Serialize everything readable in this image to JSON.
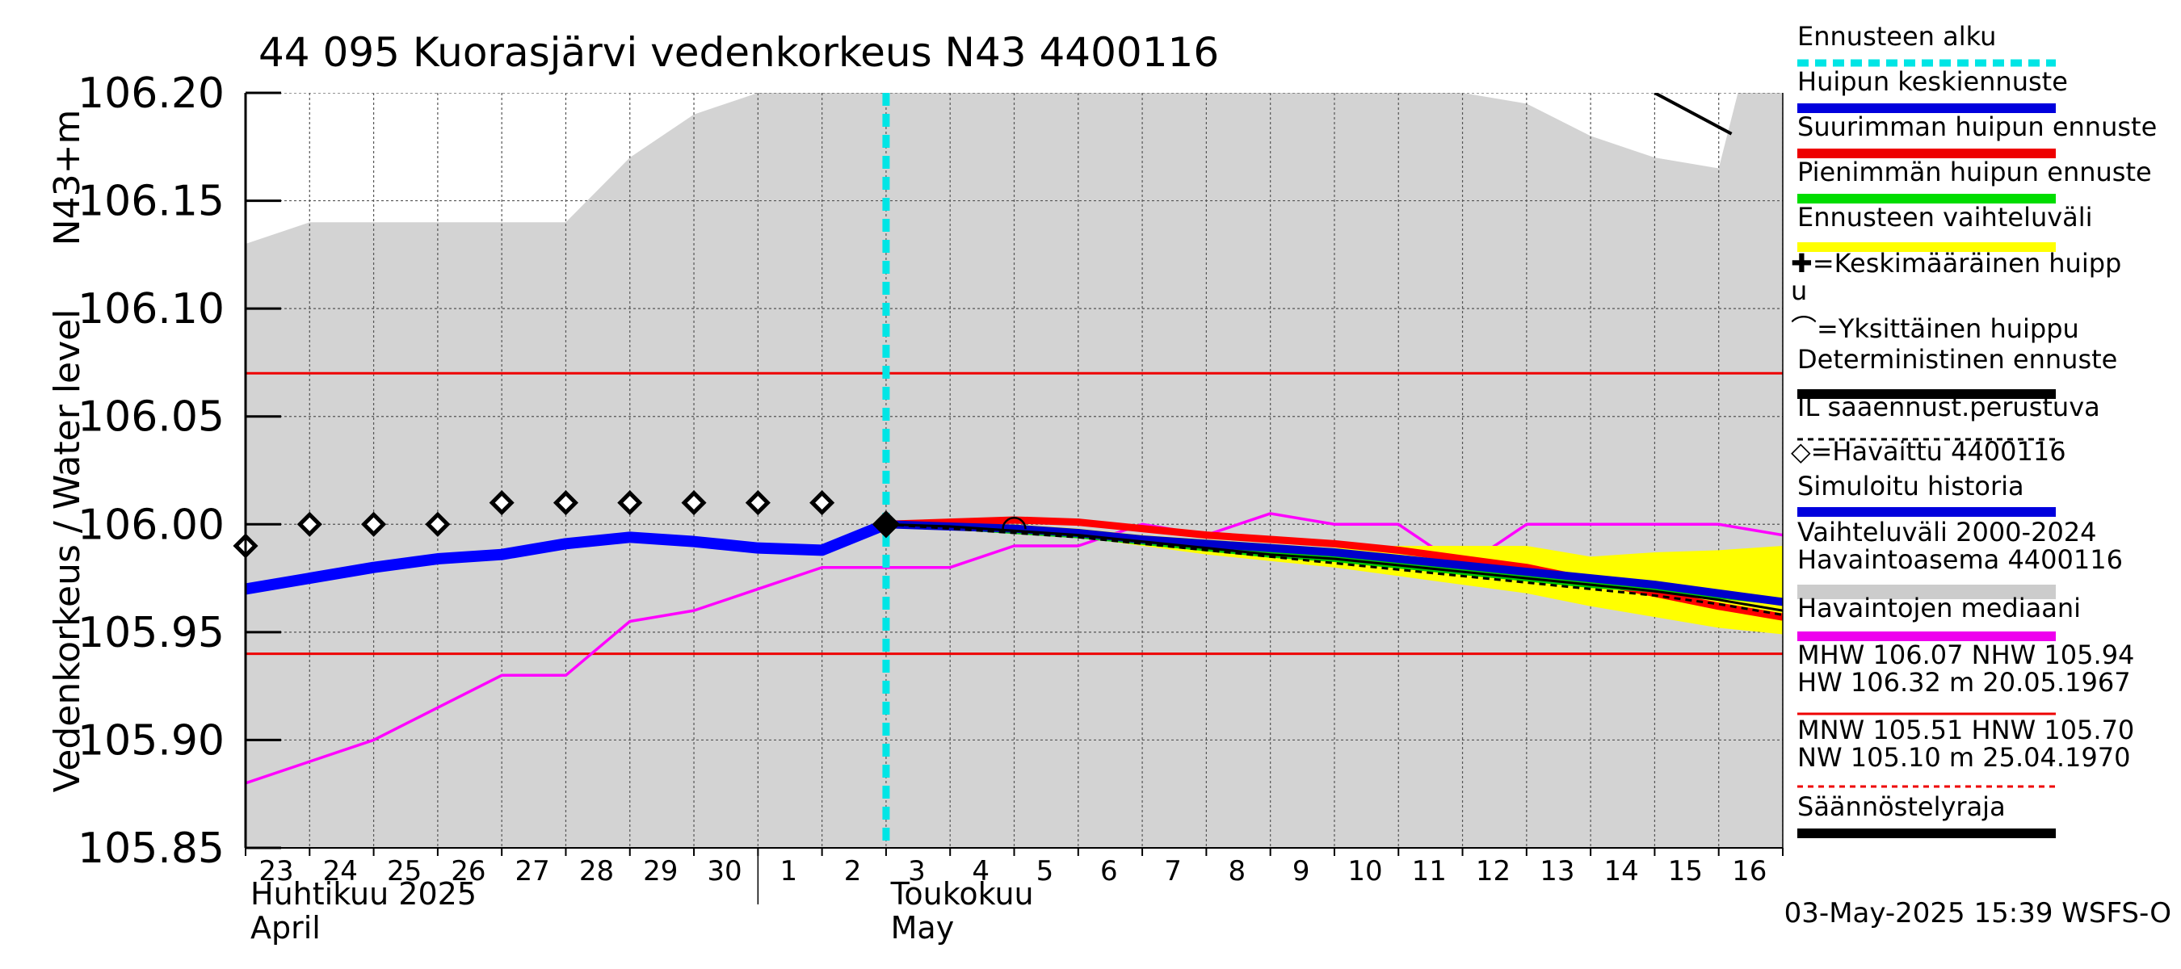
{
  "chart_data": {
    "type": "line",
    "title": "44 095 Kuorasjärvi vedenkorkeus N43 4400116",
    "ylabel_main": "Vedenkorkeus / Water level",
    "ylabel_unit": "N43+m",
    "ylim": [
      105.85,
      106.2
    ],
    "y_ticks": [
      105.85,
      105.9,
      105.95,
      106.0,
      106.05,
      106.1,
      106.15,
      106.2
    ],
    "y_tick_labels": [
      "105.85",
      "105.90",
      "105.95",
      "106.00",
      "106.05",
      "106.10",
      "106.15",
      "106.20"
    ],
    "x_range_days": [
      0,
      24
    ],
    "x_day_labels": [
      "23",
      "24",
      "25",
      "26",
      "27",
      "28",
      "29",
      "30",
      "1",
      "2",
      "3",
      "4",
      "5",
      "6",
      "7",
      "8",
      "9",
      "10",
      "11",
      "12",
      "13",
      "14",
      "15",
      "16"
    ],
    "month_labels": [
      {
        "day": 0,
        "line1": "Huhtikuu  2025",
        "line2": "April"
      },
      {
        "day": 9,
        "line1": "Toukokuu",
        "line2": "May"
      }
    ],
    "forecast_start_day": 10,
    "reference_lines": [
      {
        "name": "MHW",
        "value": 106.07
      },
      {
        "name": "NHW",
        "value": 105.94
      }
    ],
    "variability_band": {
      "x": [
        0,
        1,
        2,
        3,
        4,
        5,
        6,
        7,
        8,
        9,
        10,
        11,
        12,
        13,
        14,
        15,
        16,
        17,
        18,
        19,
        20,
        21,
        22,
        23,
        23.3,
        24
      ],
      "upper": [
        106.13,
        106.14,
        106.14,
        106.14,
        106.14,
        106.14,
        106.17,
        106.19,
        106.2,
        106.2,
        106.2,
        106.2,
        106.2,
        106.2,
        106.2,
        106.2,
        106.2,
        106.2,
        106.2,
        106.2,
        106.195,
        106.18,
        106.17,
        106.165,
        106.2,
        106.2
      ],
      "lower": [
        105.85,
        105.85,
        105.85,
        105.85,
        105.85,
        105.85,
        105.85,
        105.85,
        105.85,
        105.85,
        105.85,
        105.85,
        105.85,
        105.85,
        105.85,
        105.85,
        105.85,
        105.85,
        105.85,
        105.85,
        105.85,
        105.85,
        105.85,
        105.85,
        105.85,
        105.85
      ]
    },
    "series": [
      {
        "name": "Havaintojen mediaani",
        "color": "#ff00ff",
        "x": [
          0,
          1,
          2,
          3,
          4,
          5,
          6,
          7,
          8,
          9,
          10,
          11,
          12,
          13,
          14,
          15,
          16,
          17,
          18,
          19,
          20,
          21,
          22,
          23,
          24
        ],
        "values": [
          105.88,
          105.89,
          105.9,
          105.915,
          105.93,
          105.93,
          105.955,
          105.96,
          105.97,
          105.98,
          105.98,
          105.98,
          105.99,
          105.99,
          106.0,
          105.995,
          106.005,
          106.0,
          106.0,
          105.98,
          106.0,
          106.0,
          106.0,
          106.0,
          105.995
        ]
      },
      {
        "name": "Simuloitu historia",
        "color": "#0000ff",
        "x": [
          0,
          1,
          2,
          3,
          4,
          5,
          6,
          7,
          8,
          9,
          10
        ],
        "values": [
          105.97,
          105.975,
          105.98,
          105.984,
          105.986,
          105.991,
          105.994,
          105.992,
          105.989,
          105.988,
          106.0
        ]
      },
      {
        "name": "Ennusteen vaihteluväli",
        "color": "#ffff00",
        "x": [
          10,
          11,
          12,
          13,
          14,
          15,
          16,
          17,
          18,
          19,
          20,
          21,
          22,
          23,
          24
        ],
        "upper": [
          106.0,
          106.0,
          106.0,
          105.998,
          105.995,
          105.993,
          105.991,
          105.989,
          105.99,
          105.99,
          105.99,
          105.985,
          105.987,
          105.988,
          105.99
        ],
        "lower": [
          106.0,
          105.999,
          105.997,
          105.994,
          105.99,
          105.986,
          105.983,
          105.98,
          105.976,
          105.972,
          105.968,
          105.962,
          105.957,
          105.952,
          105.949
        ]
      },
      {
        "name": "Suurimman huipun ennuste",
        "color": "#ff0000",
        "x": [
          10,
          11,
          12,
          13,
          14,
          15,
          16,
          17,
          18,
          19,
          20,
          21,
          22,
          23,
          24
        ],
        "values": [
          106.0,
          106.001,
          106.002,
          106.001,
          105.998,
          105.995,
          105.993,
          105.991,
          105.988,
          105.984,
          105.98,
          105.974,
          105.968,
          105.962,
          105.957
        ]
      },
      {
        "name": "Pienimmän huipun ennuste",
        "color": "#00cc00",
        "x": [
          10,
          11,
          12,
          13,
          14,
          15,
          16,
          17,
          18,
          19,
          20,
          21,
          22,
          23,
          24
        ],
        "values": [
          106.0,
          105.999,
          105.997,
          105.995,
          105.992,
          105.989,
          105.986,
          105.984,
          105.981,
          105.978,
          105.975,
          105.972,
          105.97,
          105.967,
          105.964
        ]
      },
      {
        "name": "Huipun keskiennuste",
        "color": "#0000cc",
        "x": [
          10,
          11,
          12,
          13,
          14,
          15,
          16,
          17,
          18,
          19,
          20,
          21,
          22,
          23,
          24
        ],
        "values": [
          106.0,
          105.999,
          105.998,
          105.996,
          105.993,
          105.991,
          105.989,
          105.987,
          105.984,
          105.981,
          105.978,
          105.975,
          105.972,
          105.968,
          105.964
        ]
      },
      {
        "name": "Deterministinen ennuste",
        "color": "#000000",
        "x": [
          10,
          11,
          12,
          13,
          14,
          15,
          16,
          17,
          18,
          19,
          20,
          21,
          22,
          23,
          24
        ],
        "values": [
          106.0,
          105.999,
          105.997,
          105.995,
          105.992,
          105.989,
          105.986,
          105.984,
          105.981,
          105.978,
          105.975,
          105.972,
          105.969,
          105.965,
          105.96
        ]
      },
      {
        "name": "IL sääennust.perustuva",
        "color": "#000000",
        "dashed": true,
        "x": [
          10,
          11,
          12,
          13,
          14,
          15,
          16,
          17,
          18,
          19,
          20,
          21,
          22,
          23,
          24
        ],
        "values": [
          106.0,
          105.998,
          105.996,
          105.994,
          105.991,
          105.988,
          105.985,
          105.982,
          105.979,
          105.976,
          105.973,
          105.97,
          105.967,
          105.963,
          105.958
        ]
      },
      {
        "name": "Säännöstelyraja",
        "color": "#000000",
        "x": [
          22.0,
          23.2
        ],
        "values": [
          106.2,
          106.181
        ]
      }
    ],
    "observed": {
      "name": "Havaittu 4400116",
      "x": [
        0,
        1,
        2,
        3,
        4,
        5,
        6,
        7,
        8,
        9,
        10
      ],
      "values": [
        105.99,
        106.0,
        106.0,
        106.0,
        106.01,
        106.01,
        106.01,
        106.01,
        106.01,
        106.01,
        106.0
      ]
    },
    "single_peak": {
      "x": 12,
      "value": 106.0
    },
    "legend": {
      "placement": "right",
      "items": [
        {
          "label": "Ennusteen alku",
          "color": "#00e5e5",
          "style": "dash"
        },
        {
          "label": "Huipun keskiennuste",
          "color": "#0000dd",
          "style": "line"
        },
        {
          "label": "Suurimman huipun ennuste",
          "color": "#ee0000",
          "style": "line"
        },
        {
          "label": "Pienimmän huipun ennuste",
          "color": "#00dd00",
          "style": "line"
        },
        {
          "label": "Ennusteen vaihteluväli",
          "color": "#ffff00",
          "style": "line"
        },
        {
          "label": "✚=Keskimääräinen huipp",
          "label2": "u",
          "color": "#000000",
          "style": "none"
        },
        {
          "label": "⌒=Yksittäinen huippu",
          "color": "#000000",
          "style": "none"
        },
        {
          "label": "Deterministinen ennuste",
          "color": "#000000",
          "style": "line"
        },
        {
          "label": "IL sääennust.perustuva",
          "color": "#000000",
          "style": "dash"
        },
        {
          "label": "◇=Havaittu 4400116",
          "color": "#0000dd",
          "style": "line"
        },
        {
          "label": "Simuloitu historia",
          "color": "#0000dd",
          "style": "none"
        },
        {
          "label": "Vaihteluväli 2000-2024",
          "label2": " Havaintoasema 4400116",
          "color": "#cccccc",
          "style": "line"
        },
        {
          "label": "Havaintojen mediaani",
          "color": "#ee00ee",
          "style": "line"
        },
        {
          "label": "MHW 106.07 NHW 105.94",
          "label2": "HW 106.32 m 20.05.1967",
          "color": "#ee0000",
          "style": "thin"
        },
        {
          "label": "MNW 105.51 HNW 105.70",
          "label2": "NW 105.10 m 25.04.1970",
          "color": "#ee0000",
          "style": "dash"
        },
        {
          "label": "Säännöstelyraja",
          "color": "#000000",
          "style": "line"
        }
      ]
    },
    "timestamp": "03-May-2025 15:39 WSFS-O"
  }
}
